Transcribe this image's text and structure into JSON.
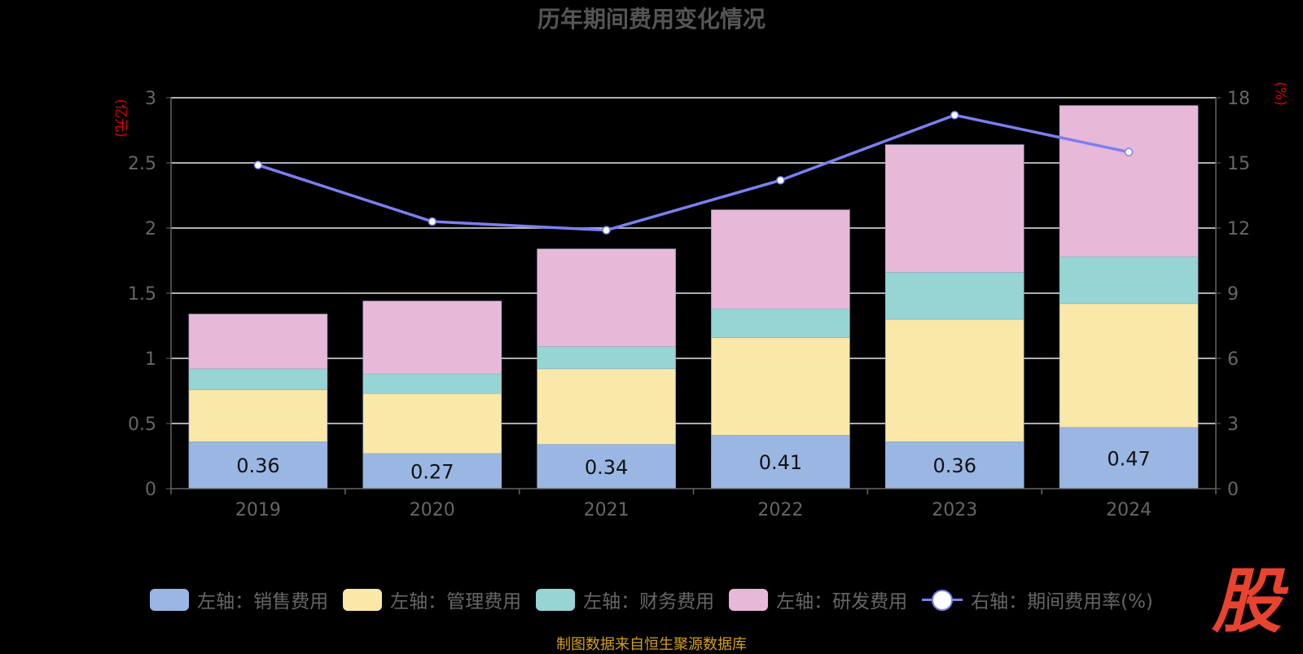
{
  "chart_data": {
    "type": "bar",
    "title": "历年期间费用变化情况",
    "categories": [
      "2019",
      "2020",
      "2021",
      "2022",
      "2023",
      "2024"
    ],
    "y_left_unit": "(亿元)",
    "y_right_unit": "(%)",
    "y_left_ticks": [
      "0",
      "0.5",
      "1",
      "1.5",
      "2",
      "2.5",
      "3"
    ],
    "y_right_ticks": [
      "0",
      "3",
      "6",
      "9",
      "12",
      "15",
      "18"
    ],
    "ylim_left": [
      0,
      3
    ],
    "ylim_right": [
      0,
      18
    ],
    "grid": true,
    "legend_position": "bottom",
    "series": [
      {
        "name": "左轴：销售费用",
        "type": "bar",
        "color": "#9AB7E3",
        "values": [
          0.36,
          0.27,
          0.34,
          0.41,
          0.36,
          0.47
        ],
        "value_labels": [
          "0.36",
          "0.27",
          "0.34",
          "0.41",
          "0.36",
          "0.47"
        ]
      },
      {
        "name": "左轴：管理费用",
        "type": "bar",
        "color": "#F9E8A8",
        "values": [
          0.4,
          0.46,
          0.58,
          0.75,
          0.94,
          0.95
        ]
      },
      {
        "name": "左轴：财务费用",
        "type": "bar",
        "color": "#97D5D5",
        "values": [
          0.16,
          0.15,
          0.17,
          0.22,
          0.36,
          0.36
        ]
      },
      {
        "name": "左轴：研发费用",
        "type": "bar",
        "color": "#E8B8D9",
        "values": [
          0.42,
          0.56,
          0.75,
          0.76,
          0.98,
          1.16
        ]
      },
      {
        "name": "右轴：期间费用率(%)",
        "type": "line",
        "color": "#7B7FF0",
        "axis": "right",
        "values": [
          14.9,
          12.3,
          11.9,
          14.2,
          17.2,
          15.5
        ]
      }
    ],
    "source_note": "制图数据来自恒生聚源数据库",
    "logo_text": "股"
  }
}
